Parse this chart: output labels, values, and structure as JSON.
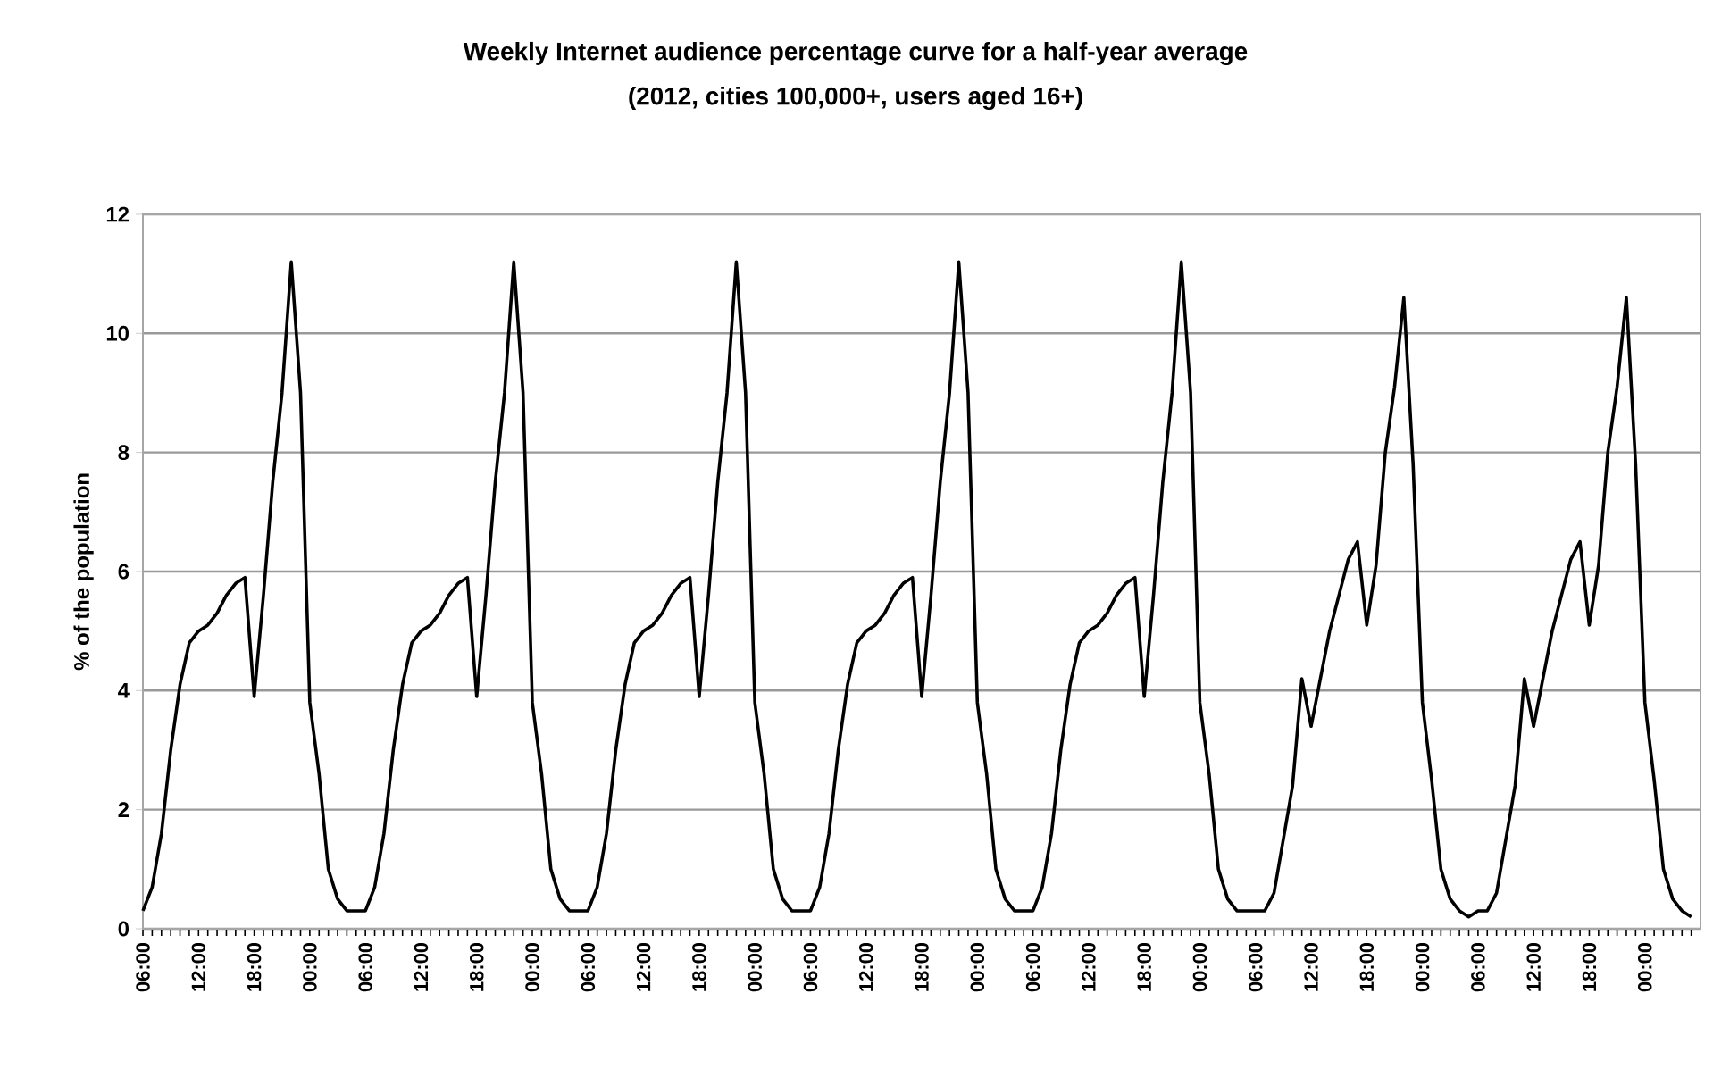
{
  "chart_data": {
    "type": "line",
    "title": "Weekly Internet audience percentage curve for a half-year average",
    "subtitle": "(2012, cities 100,000+, users aged 16+)",
    "ylabel": "% of the population",
    "categories": [
      "06:00",
      null,
      null,
      null,
      null,
      null,
      "12:00",
      null,
      null,
      null,
      null,
      null,
      "18:00",
      null,
      null,
      null,
      null,
      null,
      "00:00",
      null,
      null,
      null,
      null,
      null,
      "06:00",
      null,
      null,
      null,
      null,
      null,
      "12:00",
      null,
      null,
      null,
      null,
      null,
      "18:00",
      null,
      null,
      null,
      null,
      null,
      "00:00",
      null,
      null,
      null,
      null,
      null,
      "06:00",
      null,
      null,
      null,
      null,
      null,
      "12:00",
      null,
      null,
      null,
      null,
      null,
      "18:00",
      null,
      null,
      null,
      null,
      null,
      "00:00",
      null,
      null,
      null,
      null,
      null,
      "06:00",
      null,
      null,
      null,
      null,
      null,
      "12:00",
      null,
      null,
      null,
      null,
      null,
      "18:00",
      null,
      null,
      null,
      null,
      null,
      "00:00",
      null,
      null,
      null,
      null,
      null,
      "06:00",
      null,
      null,
      null,
      null,
      null,
      "12:00",
      null,
      null,
      null,
      null,
      null,
      "18:00",
      null,
      null,
      null,
      null,
      null,
      "00:00",
      null,
      null,
      null,
      null,
      null,
      "06:00",
      null,
      null,
      null,
      null,
      null,
      "12:00",
      null,
      null,
      null,
      null,
      null,
      "18:00",
      null,
      null,
      null,
      null,
      null,
      "00:00",
      null,
      null,
      null,
      null,
      null,
      "06:00",
      null,
      null,
      null,
      null,
      null,
      "12:00",
      null,
      null,
      null,
      null,
      null,
      "18:00",
      null,
      null,
      null,
      null,
      null,
      "00:00",
      null,
      null,
      null,
      null,
      null
    ],
    "ylim": [
      0,
      12
    ],
    "yticks": [
      0,
      2,
      4,
      6,
      8,
      10,
      12
    ],
    "grid": "y",
    "marker": "none",
    "line_style": "solid",
    "series": [
      {
        "color": "#000000",
        "values": [
          0.3,
          0.7,
          1.6,
          3.0,
          4.1,
          4.8,
          5.0,
          5.1,
          5.3,
          5.6,
          5.8,
          5.9,
          3.9,
          5.6,
          7.5,
          9.0,
          11.2,
          9.0,
          3.8,
          2.6,
          1.0,
          0.5,
          0.3,
          0.3,
          0.3,
          0.7,
          1.6,
          3.0,
          4.1,
          4.8,
          5.0,
          5.1,
          5.3,
          5.6,
          5.8,
          5.9,
          3.9,
          5.6,
          7.5,
          9.0,
          11.2,
          9.0,
          3.8,
          2.6,
          1.0,
          0.5,
          0.3,
          0.3,
          0.3,
          0.7,
          1.6,
          3.0,
          4.1,
          4.8,
          5.0,
          5.1,
          5.3,
          5.6,
          5.8,
          5.9,
          3.9,
          5.6,
          7.5,
          9.0,
          11.2,
          9.0,
          3.8,
          2.6,
          1.0,
          0.5,
          0.3,
          0.3,
          0.3,
          0.7,
          1.6,
          3.0,
          4.1,
          4.8,
          5.0,
          5.1,
          5.3,
          5.6,
          5.8,
          5.9,
          3.9,
          5.6,
          7.5,
          9.0,
          11.2,
          9.0,
          3.8,
          2.6,
          1.0,
          0.5,
          0.3,
          0.3,
          0.3,
          0.7,
          1.6,
          3.0,
          4.1,
          4.8,
          5.0,
          5.1,
          5.3,
          5.6,
          5.8,
          5.9,
          3.9,
          5.6,
          7.5,
          9.0,
          11.2,
          9.0,
          3.8,
          2.6,
          1.0,
          0.5,
          0.3,
          0.3,
          0.3,
          0.3,
          0.6,
          1.5,
          2.4,
          4.2,
          3.4,
          4.2,
          5.0,
          5.6,
          6.2,
          6.5,
          5.1,
          6.1,
          8.0,
          9.1,
          10.6,
          7.8,
          3.8,
          2.5,
          1.0,
          0.5,
          0.3,
          0.2,
          0.3,
          0.3,
          0.6,
          1.5,
          2.4,
          4.2,
          3.4,
          4.2,
          5.0,
          5.6,
          6.2,
          6.5,
          5.1,
          6.1,
          8.0,
          9.1,
          10.6,
          7.8,
          3.8,
          2.5,
          1.0,
          0.5,
          0.3,
          0.2
        ]
      }
    ]
  }
}
